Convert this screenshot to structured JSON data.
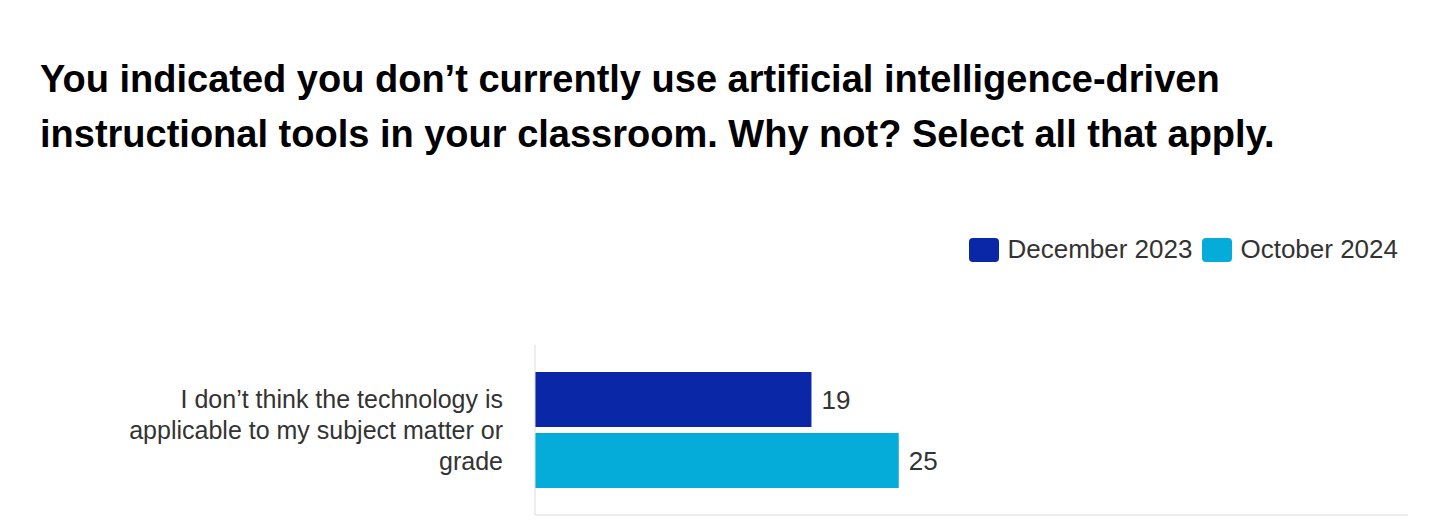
{
  "chart_data": {
    "type": "bar",
    "orientation": "horizontal",
    "title": "You indicated you don’t currently use artificial intelligence-driven instructional tools in your classroom. Why not? Select all that apply.",
    "categories": [
      "I don’t think the technology is applicable to my subject matter or grade"
    ],
    "series": [
      {
        "name": "December 2023",
        "color": "#0a27a8",
        "values": [
          19
        ]
      },
      {
        "name": "October 2024",
        "color": "#05acd9",
        "values": [
          25
        ]
      }
    ],
    "xlim": [
      0,
      60
    ],
    "legend": "top right",
    "data_labels": true,
    "tick_labels": "y"
  }
}
